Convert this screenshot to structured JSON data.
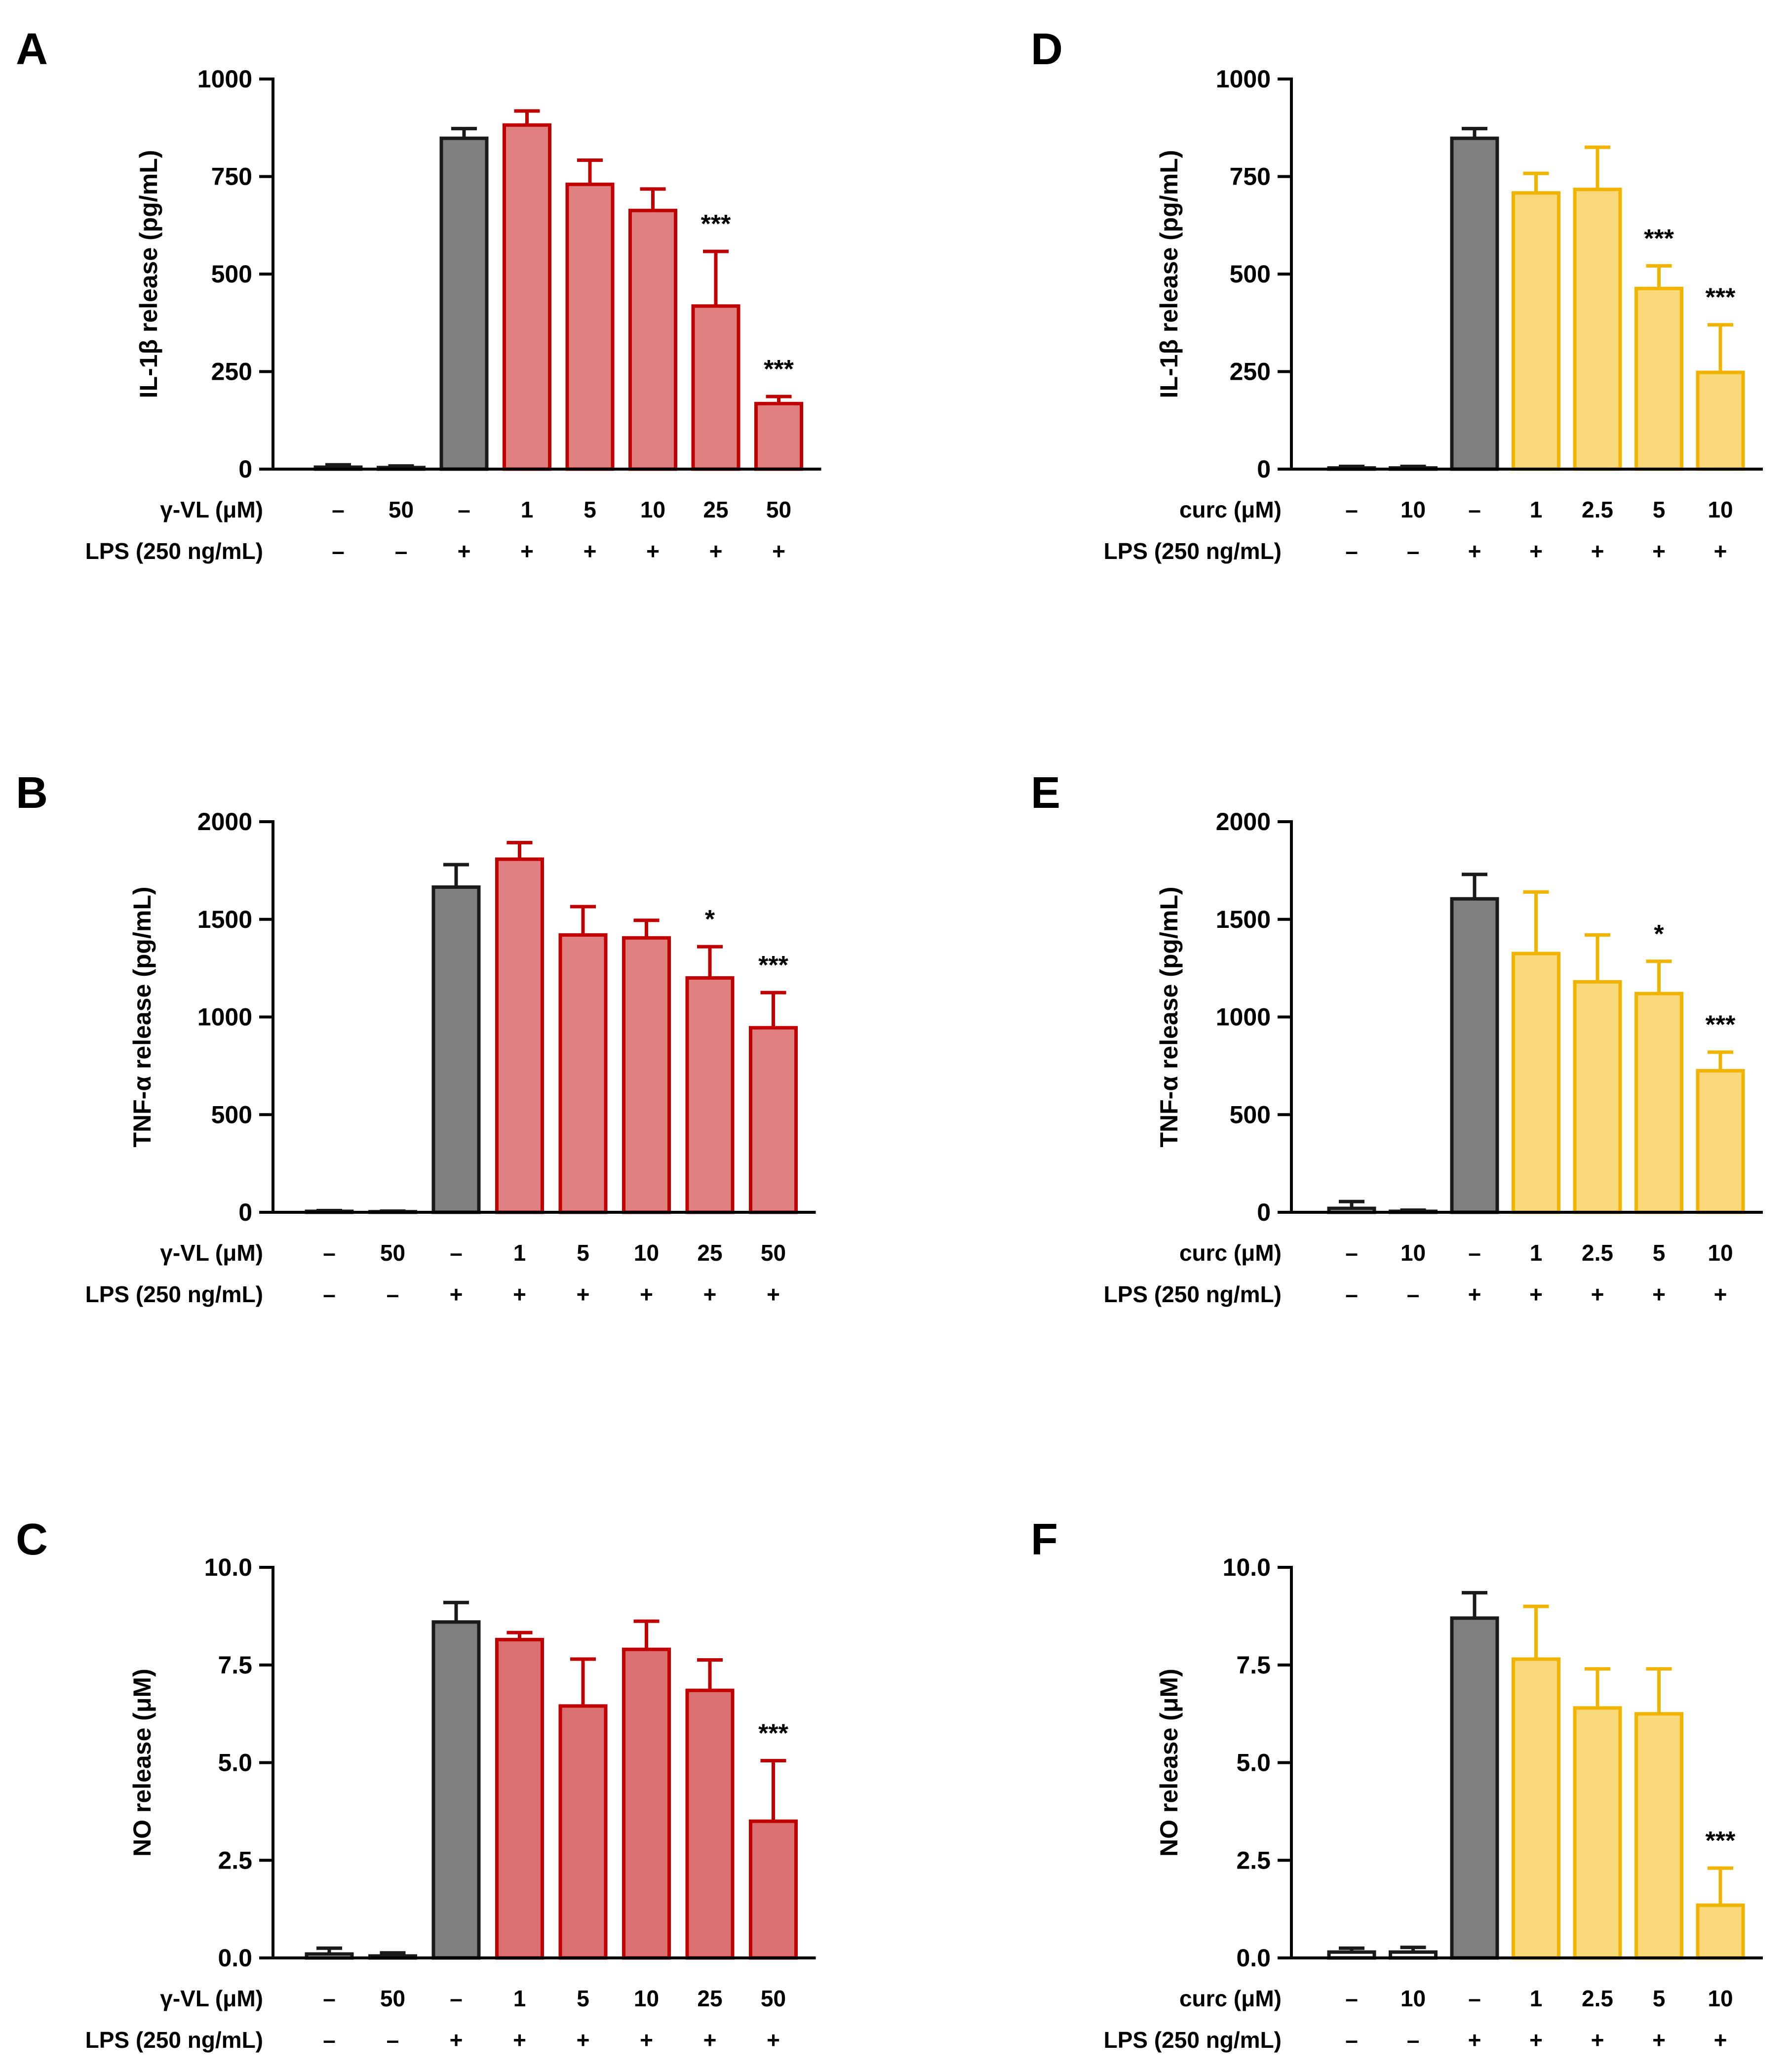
{
  "treatment_labels": {
    "vl": "γ-VL (μM)",
    "curc": "curc (μM)",
    "lps": "LPS (250 ng/mL)"
  },
  "colors": {
    "control_fill": "#7f7f7f",
    "control_edge": "#1a1a1a",
    "vl_fill": "#df8080",
    "vl_fill_no": "#da7070",
    "vl_edge": "#c00000",
    "curc_fill": "#f8d878",
    "curc_edge": "#f0b400"
  },
  "chart_data": [
    {
      "panel": "A",
      "type": "bar",
      "ylabel": "IL-1β release (pg/mL)",
      "ylim": [
        0,
        1000
      ],
      "yticks": [
        "0",
        "250",
        "500",
        "750",
        "1000"
      ],
      "treatment": "vl",
      "categories": [
        "–",
        "50",
        "–",
        "1",
        "5",
        "10",
        "25",
        "50"
      ],
      "lps": [
        "–",
        "–",
        "+",
        "+",
        "+",
        "+",
        "+",
        "+"
      ],
      "values": [
        5,
        4,
        848,
        882,
        730,
        663,
        418,
        168
      ],
      "errors": [
        6,
        4,
        25,
        36,
        62,
        55,
        140,
        18
      ],
      "significance": [
        "",
        "",
        "",
        "",
        "",
        "",
        "***",
        "***"
      ]
    },
    {
      "panel": "B",
      "type": "bar",
      "ylabel": "TNF-α release (pg/mL)",
      "ylim": [
        0,
        2000
      ],
      "yticks": [
        "0",
        "500",
        "1000",
        "1500",
        "2000"
      ],
      "treatment": "vl",
      "categories": [
        "–",
        "50",
        "–",
        "1",
        "5",
        "10",
        "25",
        "50"
      ],
      "lps": [
        "–",
        "–",
        "+",
        "+",
        "+",
        "+",
        "+",
        "+"
      ],
      "values": [
        5,
        3,
        1665,
        1808,
        1420,
        1405,
        1200,
        945
      ],
      "errors": [
        4,
        3,
        115,
        85,
        145,
        90,
        160,
        180
      ],
      "significance": [
        "",
        "",
        "",
        "",
        "",
        "",
        "*",
        "***"
      ]
    },
    {
      "panel": "C",
      "type": "bar",
      "ylabel": "NO release (μM)",
      "ylim": [
        0,
        10
      ],
      "yticks": [
        "0.0",
        "2.5",
        "5.0",
        "7.5",
        "10.0"
      ],
      "treatment": "vl",
      "categories": [
        "–",
        "50",
        "–",
        "1",
        "5",
        "10",
        "25",
        "50"
      ],
      "lps": [
        "–",
        "–",
        "+",
        "+",
        "+",
        "+",
        "+",
        "+"
      ],
      "values": [
        0.1,
        0.05,
        8.6,
        8.15,
        6.45,
        7.9,
        6.85,
        3.5
      ],
      "errors": [
        0.15,
        0.08,
        0.5,
        0.18,
        1.2,
        0.72,
        0.78,
        1.55
      ],
      "significance": [
        "",
        "",
        "",
        "",
        "",
        "",
        "",
        "***"
      ]
    },
    {
      "panel": "D",
      "type": "bar",
      "ylabel": "IL-1β release (pg/mL)",
      "ylim": [
        0,
        1000
      ],
      "yticks": [
        "0",
        "250",
        "500",
        "750",
        "1000"
      ],
      "treatment": "curc",
      "categories": [
        "–",
        "10",
        "–",
        "1",
        "2.5",
        "5",
        "10"
      ],
      "lps": [
        "–",
        "–",
        "+",
        "+",
        "+",
        "+",
        "+"
      ],
      "values": [
        3,
        3,
        848,
        708,
        717,
        463,
        248
      ],
      "errors": [
        4,
        4,
        25,
        50,
        108,
        58,
        122
      ],
      "significance": [
        "",
        "",
        "",
        "",
        "",
        "***",
        "***"
      ]
    },
    {
      "panel": "E",
      "type": "bar",
      "ylabel": "TNF-α release (pg/mL)",
      "ylim": [
        0,
        2000
      ],
      "yticks": [
        "0",
        "500",
        "1000",
        "1500",
        "2000"
      ],
      "treatment": "curc",
      "categories": [
        "–",
        "10",
        "–",
        "1",
        "2.5",
        "5",
        "10"
      ],
      "lps": [
        "–",
        "–",
        "+",
        "+",
        "+",
        "+",
        "+"
      ],
      "values": [
        20,
        5,
        1605,
        1325,
        1180,
        1120,
        725
      ],
      "errors": [
        35,
        6,
        125,
        315,
        240,
        165,
        95
      ],
      "significance": [
        "",
        "",
        "",
        "",
        "",
        "*",
        "***"
      ]
    },
    {
      "panel": "F",
      "type": "bar",
      "ylabel": "NO release (μM)",
      "ylim": [
        0,
        10
      ],
      "yticks": [
        "0.0",
        "2.5",
        "5.0",
        "7.5",
        "10.0"
      ],
      "treatment": "curc",
      "categories": [
        "–",
        "10",
        "–",
        "1",
        "2.5",
        "5",
        "10"
      ],
      "lps": [
        "–",
        "–",
        "+",
        "+",
        "+",
        "+",
        "+"
      ],
      "values": [
        0.15,
        0.15,
        8.7,
        7.65,
        6.4,
        6.25,
        1.35
      ],
      "errors": [
        0.1,
        0.12,
        0.65,
        1.35,
        1.0,
        1.15,
        0.95
      ],
      "significance": [
        "",
        "",
        "",
        "",
        "",
        "",
        "***"
      ]
    }
  ]
}
